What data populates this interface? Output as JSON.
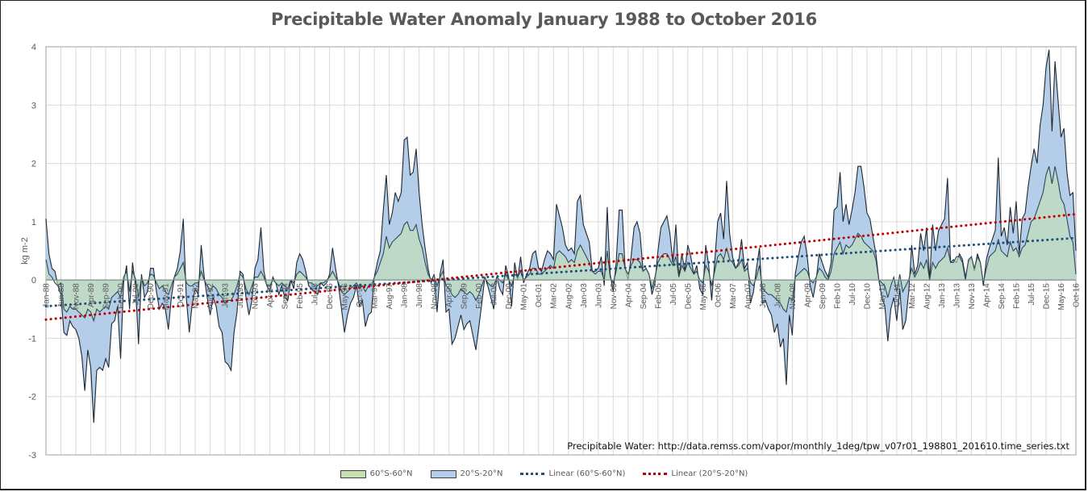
{
  "chart_data": {
    "type": "area",
    "title": "Precipitable Water Anomaly January 1988 to October 2016",
    "xlabel": "",
    "ylabel": "kg m-2",
    "ylim": [
      -3,
      4
    ],
    "yticks": [
      4,
      3,
      2,
      1,
      0,
      -1,
      -2,
      -3
    ],
    "grid": true,
    "legend_position": "bottom",
    "start_month": "Jan-88",
    "end_month": "Oct-16",
    "x_tick_every_months": 5,
    "x_tick_labels": [
      "Jan-88",
      "Jun-88",
      "Nov-88",
      "Apr-89",
      "Sep-89",
      "Feb-90",
      "Jul-90",
      "Dec-90",
      "May-91",
      "Oct-91",
      "Mar-92",
      "Aug-92",
      "Jan-93",
      "Jun-93",
      "Nov-93",
      "Apr-94",
      "Sep-94",
      "Feb-95",
      "Jul-95",
      "Dec-95",
      "May-96",
      "Oct-96",
      "Mar-97",
      "Aug-97",
      "Jan-98",
      "Jun-98",
      "Nov-98",
      "Apr-99",
      "Sep-99",
      "Feb-00",
      "Jul-00",
      "Dec-00",
      "May-01",
      "Oct-01",
      "Mar-02",
      "Aug-02",
      "Jan-03",
      "Jun-03",
      "Nov-03",
      "Apr-04",
      "Sep-04",
      "Feb-05",
      "Jul-05",
      "Dec-05",
      "May-06",
      "Oct-06",
      "Mar-07",
      "Aug-07",
      "Jan-08",
      "Jun-08",
      "Nov-08",
      "Apr-09",
      "Sep-09",
      "Feb-10",
      "Jul-10",
      "Dec-10",
      "May-11",
      "Oct-11",
      "Mar-12",
      "Aug-12",
      "Jan-13",
      "Jun-13",
      "Nov-13",
      "Apr-14",
      "Sep-14",
      "Feb-15",
      "Jul-15",
      "Dec-15",
      "May-16",
      "Oct-16"
    ],
    "series": [
      {
        "name": "20°S-20°N",
        "kind": "area",
        "color": "#b4cde9",
        "values": [
          1.05,
          0.45,
          0.2,
          0.15,
          -0.1,
          -0.25,
          -0.9,
          -0.95,
          -0.7,
          -0.8,
          -0.85,
          -1.0,
          -1.3,
          -1.9,
          -1.2,
          -1.5,
          -2.45,
          -1.55,
          -1.5,
          -1.55,
          -1.35,
          -1.5,
          -0.75,
          -0.7,
          -0.45,
          -1.35,
          -0.05,
          0.25,
          -0.5,
          0.3,
          -0.1,
          -1.1,
          0.1,
          -0.3,
          -0.2,
          0.2,
          0.2,
          -0.2,
          -0.5,
          -0.4,
          -0.5,
          -0.85,
          -0.3,
          0.05,
          0.2,
          0.5,
          1.05,
          -0.3,
          -0.9,
          -0.4,
          -0.15,
          -0.25,
          0.6,
          0.05,
          -0.3,
          -0.6,
          -0.3,
          -0.45,
          -0.8,
          -0.9,
          -1.4,
          -1.45,
          -1.55,
          -0.9,
          -0.55,
          0.15,
          0.1,
          -0.3,
          -0.6,
          -0.35,
          0.2,
          0.35,
          0.9,
          0.15,
          -0.1,
          -0.2,
          0.05,
          -0.05,
          -0.25,
          -0.1,
          -0.3,
          -0.35,
          0.0,
          -0.15,
          0.3,
          0.45,
          0.35,
          0.15,
          -0.1,
          -0.15,
          -0.2,
          -0.25,
          -0.05,
          -0.1,
          -0.05,
          0.1,
          0.55,
          0.2,
          -0.1,
          -0.5,
          -0.9,
          -0.6,
          -0.4,
          -0.3,
          -0.1,
          -0.45,
          -0.35,
          -0.8,
          -0.6,
          -0.55,
          0.05,
          0.3,
          0.5,
          1.2,
          1.8,
          0.95,
          1.15,
          1.5,
          1.35,
          1.5,
          2.4,
          2.45,
          1.8,
          1.85,
          2.25,
          1.5,
          0.95,
          0.55,
          0.2,
          -0.05,
          0.1,
          -0.55,
          0.1,
          0.35,
          -0.55,
          -0.5,
          -1.1,
          -1.0,
          -0.8,
          -0.6,
          -0.85,
          -0.75,
          -0.7,
          -0.95,
          -1.2,
          -0.8,
          -0.4,
          0.05,
          -0.1,
          -0.3,
          -0.5,
          0.05,
          -0.15,
          -0.25,
          0.25,
          0.05,
          -0.45,
          0.3,
          0.0,
          0.4,
          -0.05,
          0.1,
          0.2,
          0.45,
          0.5,
          0.2,
          0.15,
          0.35,
          0.5,
          0.45,
          0.35,
          1.3,
          1.1,
          0.9,
          0.6,
          0.5,
          0.55,
          0.45,
          1.35,
          1.45,
          0.95,
          0.8,
          0.65,
          0.15,
          0.15,
          0.2,
          0.4,
          -0.1,
          1.25,
          0.1,
          -0.2,
          0.3,
          1.2,
          1.2,
          0.2,
          0.0,
          0.4,
          0.9,
          1.0,
          0.8,
          0.15,
          0.2,
          0.1,
          -0.25,
          -0.05,
          0.5,
          0.9,
          1.0,
          1.1,
          0.8,
          0.3,
          0.95,
          0.05,
          0.45,
          0.15,
          0.6,
          0.4,
          0.1,
          0.25,
          -0.15,
          -0.25,
          0.6,
          0.25,
          -0.35,
          0.3,
          1.0,
          1.15,
          0.7,
          1.7,
          0.8,
          0.4,
          0.2,
          0.3,
          0.7,
          0.2,
          0.3,
          -0.4,
          -0.2,
          0.2,
          0.55,
          -0.4,
          -0.35,
          -0.5,
          -0.6,
          -0.9,
          -0.75,
          -1.15,
          -1.0,
          -1.8,
          -0.6,
          -0.95,
          0.1,
          0.4,
          0.65,
          0.75,
          0.4,
          -0.1,
          -0.3,
          0.0,
          0.45,
          0.3,
          0.15,
          0.05,
          0.3,
          1.2,
          1.25,
          1.85,
          1.0,
          1.3,
          0.95,
          1.2,
          1.5,
          1.95,
          1.95,
          1.6,
          1.15,
          1.05,
          0.75,
          0.45,
          0.0,
          -0.3,
          -0.45,
          -1.05,
          -0.5,
          -0.3,
          -0.7,
          -0.15,
          -0.85,
          -0.7,
          -0.2,
          0.6,
          0.1,
          0.25,
          0.8,
          0.5,
          0.9,
          0.0,
          0.95,
          0.5,
          0.85,
          0.95,
          1.05,
          1.75,
          0.3,
          0.35,
          0.3,
          0.45,
          0.35,
          0.05,
          0.3,
          0.4,
          0.15,
          0.45,
          0.3,
          -0.1,
          0.35,
          0.55,
          0.7,
          0.85,
          2.1,
          0.75,
          0.9,
          0.6,
          1.25,
          0.8,
          1.35,
          0.45,
          1.05,
          1.15,
          1.6,
          1.95,
          2.25,
          2.0,
          2.65,
          3.0,
          3.65,
          3.95,
          2.55,
          3.75,
          3.1,
          2.45,
          2.6,
          1.85,
          1.45,
          1.5,
          0.5
        ]
      },
      {
        "name": "60°S-60°N",
        "kind": "area",
        "color": "#c6e0b4",
        "values": [
          0.35,
          0.1,
          0.05,
          -0.05,
          -0.1,
          -0.05,
          -0.5,
          -0.55,
          -0.45,
          -0.5,
          -0.5,
          -0.55,
          -0.6,
          -0.65,
          -0.5,
          -0.55,
          -0.7,
          -0.5,
          -0.55,
          -0.5,
          -0.45,
          -0.5,
          -0.3,
          -0.25,
          -0.2,
          -0.3,
          0.05,
          0.15,
          -0.2,
          0.15,
          0.02,
          -0.3,
          0.05,
          -0.1,
          -0.05,
          0.1,
          0.08,
          -0.05,
          -0.15,
          -0.1,
          -0.2,
          -0.25,
          -0.1,
          0.05,
          0.1,
          0.2,
          0.3,
          -0.05,
          -0.1,
          -0.1,
          -0.05,
          -0.05,
          0.15,
          0.0,
          -0.1,
          -0.2,
          -0.1,
          -0.15,
          -0.25,
          -0.3,
          -0.4,
          -0.35,
          -0.35,
          -0.25,
          -0.1,
          0.1,
          0.05,
          -0.15,
          -0.25,
          -0.1,
          0.05,
          0.05,
          0.15,
          0.05,
          -0.1,
          -0.1,
          0.0,
          -0.05,
          -0.1,
          -0.05,
          -0.1,
          -0.15,
          0.0,
          -0.05,
          0.1,
          0.15,
          0.1,
          0.05,
          -0.05,
          -0.05,
          -0.1,
          -0.1,
          -0.05,
          -0.05,
          0.0,
          0.05,
          0.15,
          0.05,
          -0.05,
          -0.2,
          -0.25,
          -0.2,
          -0.15,
          -0.1,
          -0.05,
          -0.15,
          -0.1,
          -0.2,
          -0.1,
          -0.1,
          0.05,
          0.15,
          0.3,
          0.45,
          0.75,
          0.55,
          0.65,
          0.7,
          0.75,
          0.8,
          0.95,
          1.0,
          0.85,
          0.85,
          0.95,
          0.7,
          0.55,
          0.3,
          0.1,
          0.0,
          0.08,
          -0.1,
          0.05,
          0.15,
          -0.1,
          -0.15,
          -0.25,
          -0.3,
          -0.25,
          -0.15,
          -0.2,
          -0.25,
          -0.2,
          -0.25,
          -0.35,
          -0.25,
          -0.1,
          0.05,
          -0.05,
          -0.1,
          -0.1,
          0.05,
          0.0,
          -0.05,
          0.1,
          0.0,
          -0.1,
          0.1,
          0.05,
          0.15,
          0.0,
          0.05,
          0.1,
          0.2,
          0.2,
          0.1,
          0.1,
          0.15,
          0.2,
          0.25,
          0.2,
          0.45,
          0.5,
          0.45,
          0.4,
          0.3,
          0.35,
          0.3,
          0.5,
          0.6,
          0.5,
          0.4,
          0.3,
          0.15,
          0.1,
          0.15,
          0.15,
          0.0,
          0.5,
          0.05,
          -0.05,
          0.15,
          0.45,
          0.45,
          0.2,
          0.1,
          0.25,
          0.35,
          0.35,
          0.3,
          0.15,
          0.2,
          0.1,
          -0.15,
          0.05,
          0.3,
          0.4,
          0.45,
          0.45,
          0.35,
          0.25,
          0.4,
          0.05,
          0.25,
          0.15,
          0.3,
          0.2,
          0.1,
          0.15,
          0.0,
          -0.05,
          0.25,
          0.15,
          -0.1,
          0.15,
          0.4,
          0.45,
          0.35,
          0.55,
          0.35,
          0.3,
          0.2,
          0.25,
          0.35,
          0.15,
          0.2,
          -0.05,
          -0.1,
          0.05,
          0.25,
          -0.15,
          -0.2,
          -0.25,
          -0.25,
          -0.3,
          -0.35,
          -0.4,
          -0.5,
          -0.55,
          -0.3,
          -0.35,
          0.05,
          0.1,
          0.15,
          0.2,
          0.15,
          0.0,
          -0.05,
          0.05,
          0.2,
          0.15,
          0.05,
          0.0,
          0.15,
          0.45,
          0.55,
          0.65,
          0.45,
          0.6,
          0.55,
          0.6,
          0.7,
          0.8,
          0.75,
          0.65,
          0.6,
          0.55,
          0.5,
          0.35,
          0.0,
          -0.05,
          -0.1,
          -0.3,
          -0.1,
          0.05,
          -0.2,
          0.1,
          -0.2,
          -0.1,
          0.0,
          0.2,
          0.05,
          0.15,
          0.3,
          0.2,
          0.35,
          0.0,
          0.3,
          0.2,
          0.3,
          0.35,
          0.4,
          0.55,
          0.3,
          0.3,
          0.4,
          0.4,
          0.3,
          0.0,
          0.35,
          0.4,
          0.2,
          0.4,
          0.3,
          -0.05,
          0.2,
          0.4,
          0.45,
          0.5,
          0.7,
          0.5,
          0.45,
          0.4,
          0.65,
          0.5,
          0.55,
          0.4,
          0.55,
          0.6,
          0.8,
          1.0,
          1.05,
          1.2,
          1.35,
          1.5,
          1.8,
          1.95,
          1.65,
          1.95,
          1.7,
          1.4,
          1.3,
          1.05,
          0.75,
          0.65,
          0.1
        ]
      },
      {
        "name": "Linear (60°S-60°N)",
        "kind": "trendline",
        "color": "#1f4e79",
        "start_value": -0.45,
        "end_value": 0.72
      },
      {
        "name": "Linear (20°S-20°N)",
        "kind": "trendline",
        "color": "#c00000",
        "start_value": -0.68,
        "end_value": 1.13
      }
    ],
    "annotation": "Precipitable Water: http://data.remss.com/vapor/monthly_1deg/tpw_v07r01_198801_201610.time_series.txt"
  },
  "legend": [
    {
      "label": "60°S-60°N",
      "kind": "swatch",
      "color": "#c6e0b4"
    },
    {
      "label": "20°S-20°N",
      "kind": "swatch",
      "color": "#b4cde9"
    },
    {
      "label": "Linear (60°S-60°N)",
      "kind": "dots",
      "color": "#1f4e79"
    },
    {
      "label": "Linear (20°S-20°N)",
      "kind": "dots",
      "color": "#c00000"
    }
  ]
}
